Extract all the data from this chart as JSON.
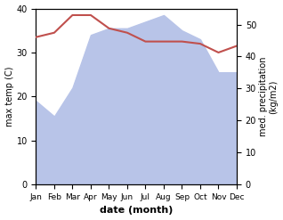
{
  "months": [
    "Jan",
    "Feb",
    "Mar",
    "Apr",
    "May",
    "Jun",
    "Jul",
    "Aug",
    "Sep",
    "Oct",
    "Nov",
    "Dec"
  ],
  "max_temp": [
    33.5,
    34.5,
    38.5,
    38.5,
    35.5,
    34.5,
    32.5,
    32.5,
    32.5,
    32.0,
    30.0,
    31.5
  ],
  "precipitation_left_scale": [
    19,
    15.5,
    22,
    34,
    35.5,
    35.5,
    37.0,
    38.5,
    35.0,
    33.0,
    25.5,
    25.5
  ],
  "temp_color": "#c0504d",
  "precip_fill_color": "#b8c4e8",
  "ylabel_left": "max temp (C)",
  "ylabel_right": "med. precipitation\n(kg/m2)",
  "xlabel": "date (month)",
  "ylim_left": [
    0,
    40
  ],
  "ylim_right": [
    0,
    55
  ],
  "yticks_left": [
    0,
    10,
    20,
    30,
    40
  ],
  "yticks_right": [
    0,
    10,
    20,
    30,
    40,
    50
  ],
  "background_color": "#ffffff"
}
